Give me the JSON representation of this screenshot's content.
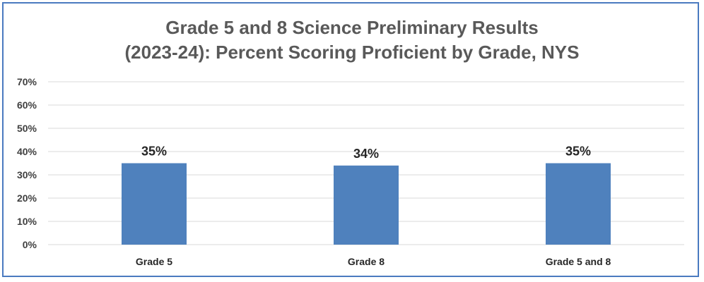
{
  "chart_data": {
    "type": "bar",
    "title_lines": [
      "Grade 5 and 8 Science Preliminary Results",
      "(2023-24): Percent Scoring Proficient by Grade, NYS"
    ],
    "categories": [
      "Grade 5",
      "Grade 8",
      "Grade 5 and 8"
    ],
    "values": [
      35,
      34,
      35
    ],
    "data_labels": [
      "35%",
      "34%",
      "35%"
    ],
    "y_ticks": [
      "0%",
      "10%",
      "20%",
      "30%",
      "40%",
      "50%",
      "60%",
      "70%"
    ],
    "ylim": [
      0,
      70
    ],
    "grid": true,
    "legend": "none",
    "colors": {
      "bar": "#4f81bd",
      "grid": "#d9d9d9",
      "frame": "#4a7ac0",
      "title": "#595959"
    }
  }
}
